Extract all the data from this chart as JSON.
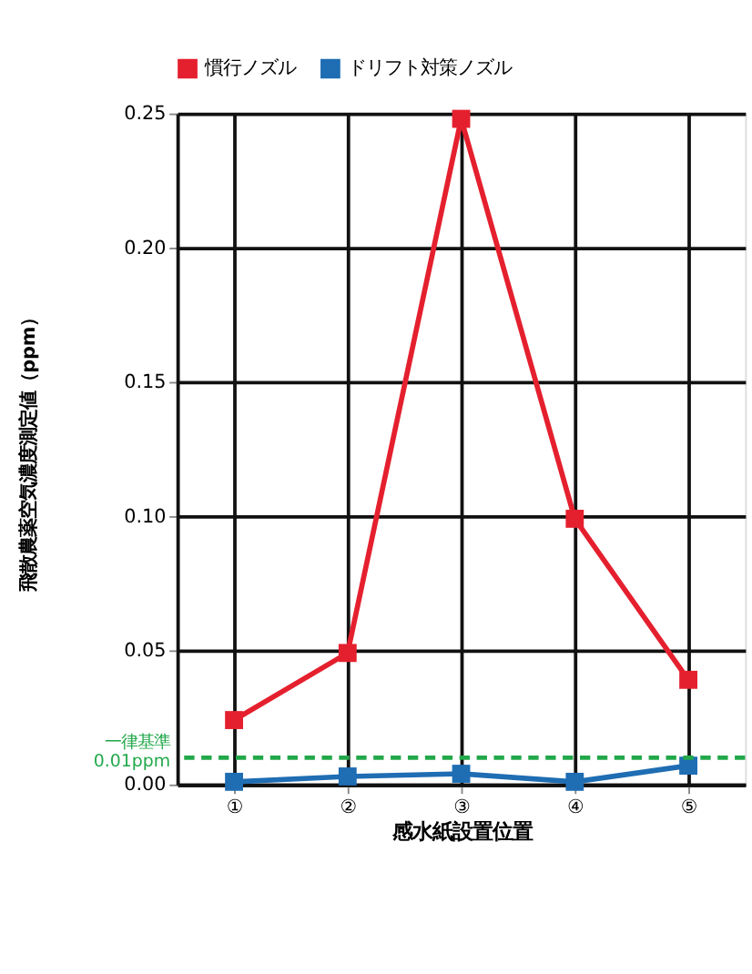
{
  "chart_data": {
    "type": "line",
    "categories": [
      "①",
      "②",
      "③",
      "④",
      "⑤"
    ],
    "series": [
      {
        "name": "慣行ノズル",
        "color": "#e5202e",
        "values": [
          0.024,
          0.049,
          0.248,
          0.099,
          0.039
        ]
      },
      {
        "name": "ドリフト対策ノズル",
        "color": "#1f6db3",
        "values": [
          0.001,
          0.003,
          0.004,
          0.001,
          0.007
        ]
      }
    ],
    "xlabel": "感水紙設置位置",
    "ylabel": "飛散農薬空気濃度測定値（ppm）",
    "ylim": [
      0,
      0.25
    ],
    "yticks": [
      {
        "value": 0,
        "label": "0.00"
      },
      {
        "value": 0.05,
        "label": "0.05"
      },
      {
        "value": 0.1,
        "label": "0.10"
      },
      {
        "value": 0.15,
        "label": "0.15"
      },
      {
        "value": 0.2,
        "label": "0.20"
      },
      {
        "value": 0.25,
        "label": "0.25"
      }
    ],
    "ref_lines": [
      {
        "axis": "y",
        "value": 0.01,
        "label": "一律基準\n0.01ppm",
        "color": "#22a84a",
        "line_style": "dashed"
      }
    ],
    "grid": true,
    "legend": "top",
    "marker": "square",
    "line_style": "solid"
  }
}
